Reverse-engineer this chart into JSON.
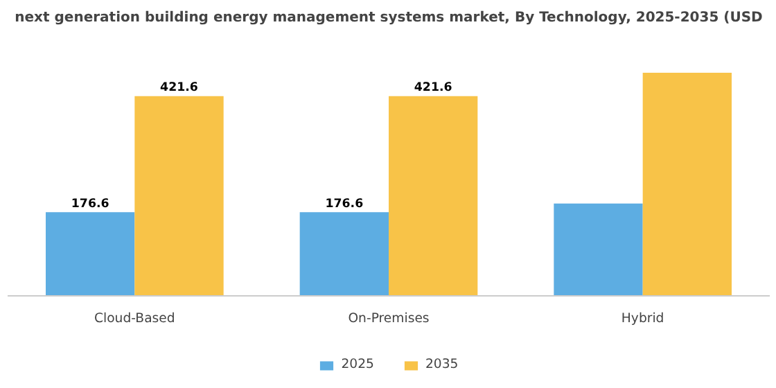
{
  "chart_data": {
    "type": "bar",
    "title": "next generation building energy management systems market, By Technology, 2025-2035 (USD",
    "categories": [
      "Cloud-Based",
      "On-Premises",
      "Hybrid"
    ],
    "series": [
      {
        "name": "2025",
        "color": "#5dade2",
        "values": [
          176.6,
          176.6,
          195
        ],
        "value_labels": [
          "176.6",
          "176.6",
          null
        ]
      },
      {
        "name": "2035",
        "color": "#f8c348",
        "values": [
          421.6,
          421.6,
          471
        ],
        "value_labels": [
          "421.6",
          "421.6",
          null
        ]
      }
    ],
    "legend": "bottom"
  }
}
